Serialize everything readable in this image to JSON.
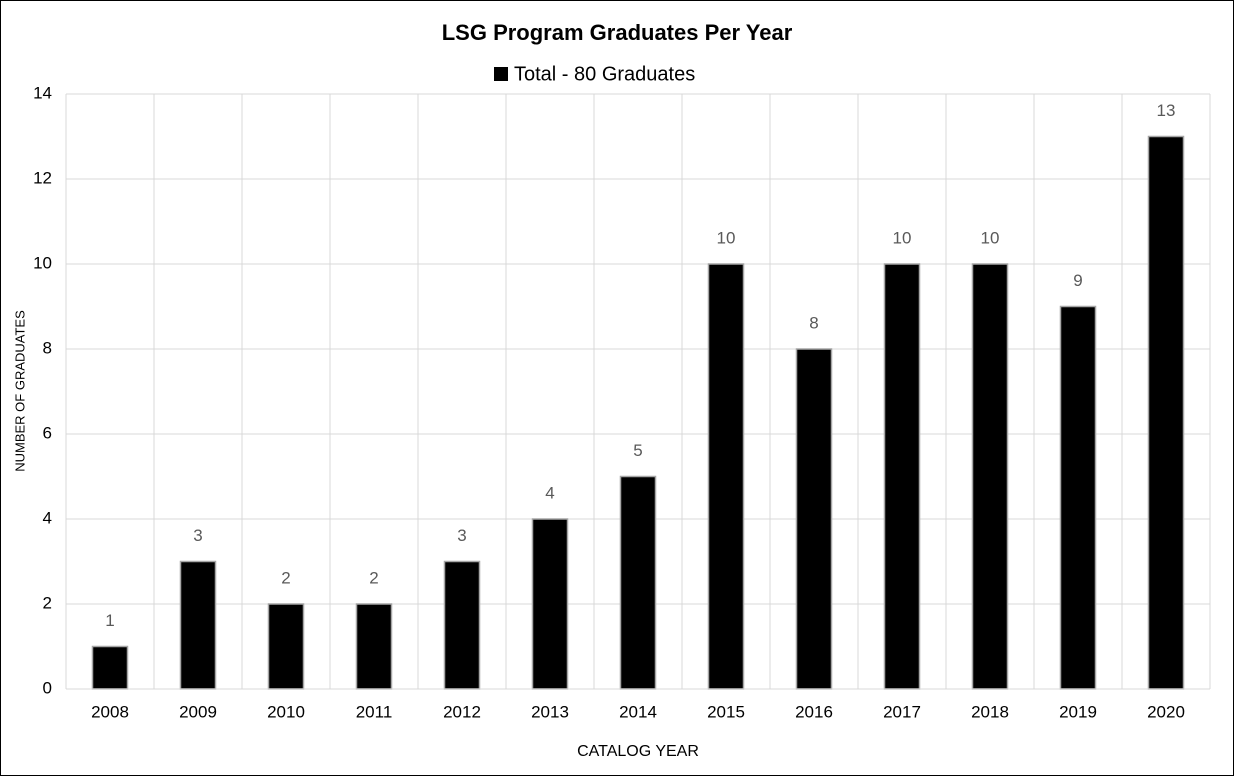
{
  "chart_data": {
    "type": "bar",
    "title": "LSG Program Graduates Per Year",
    "x_label": "CATALOG YEAR",
    "y_label": "NUMBER OF GRADUATES",
    "categories": [
      "2008",
      "2009",
      "2010",
      "2011",
      "2012",
      "2013",
      "2014",
      "2015",
      "2016",
      "2017",
      "2018",
      "2019",
      "2020"
    ],
    "series": [
      {
        "name": "Total - 80 Graduates",
        "color": "#000000",
        "values": [
          1,
          3,
          2,
          2,
          3,
          4,
          5,
          10,
          8,
          10,
          10,
          9,
          13
        ]
      }
    ],
    "ylim": [
      0,
      14
    ],
    "yticks": [
      0,
      2,
      4,
      6,
      8,
      10,
      12,
      14
    ],
    "grid": true,
    "legend": "top"
  }
}
